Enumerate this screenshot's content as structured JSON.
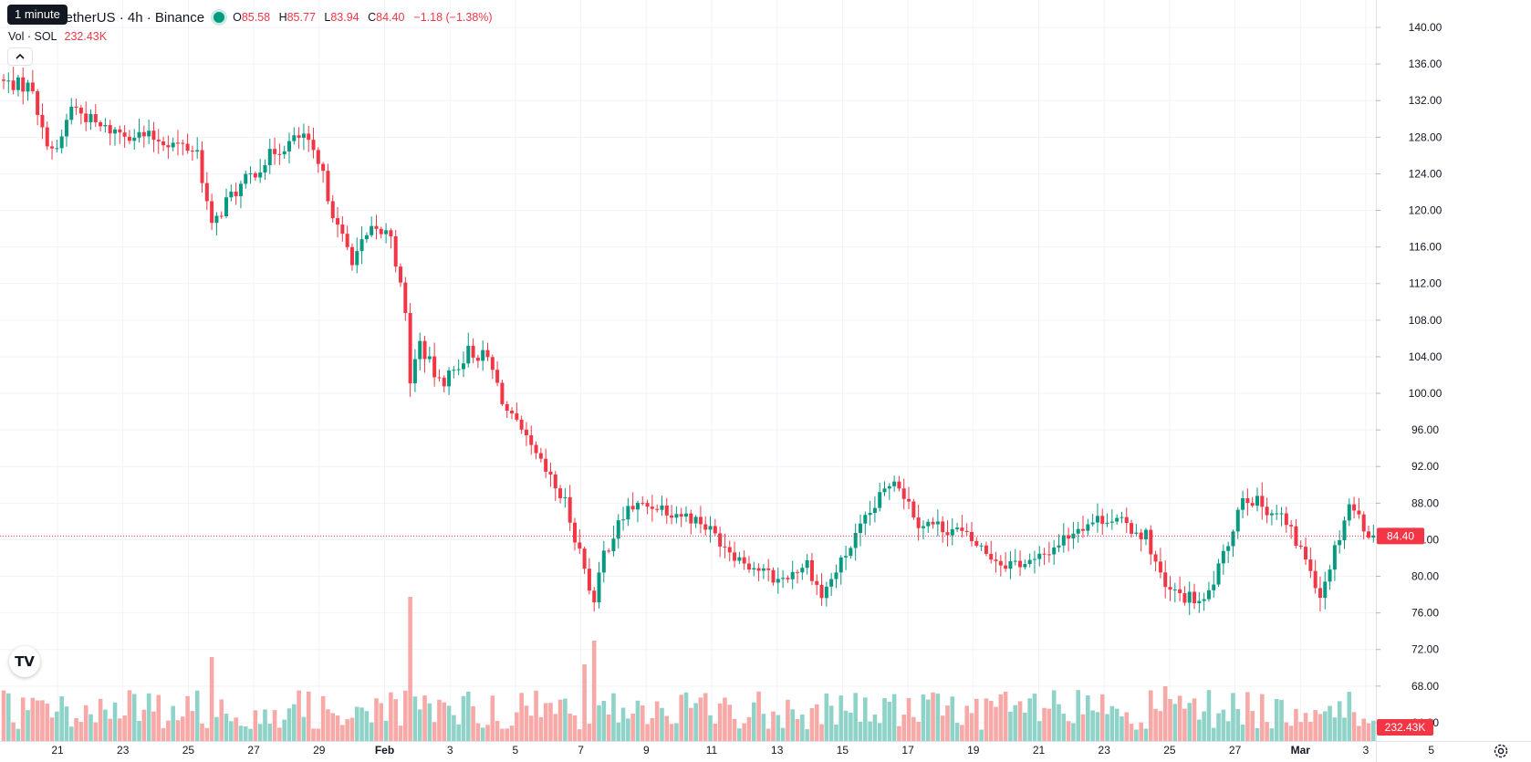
{
  "legend": {
    "tooltip": "1 minute",
    "symbol": "TetherUS · 4h · Binance",
    "o_label": "O",
    "o_value": "85.58",
    "h_label": "H",
    "h_value": "85.77",
    "l_label": "L",
    "l_value": "83.94",
    "c_label": "C",
    "c_value": "84.40",
    "change": "−1.18 (−1.38%)",
    "vol_label": "Vol · SOL",
    "vol_value": "232.43K"
  },
  "colors": {
    "up": "#089981",
    "down": "#f23645",
    "up_vol": "#8fd3c8",
    "down_vol": "#f7a9a7",
    "grid": "#f0f3fa"
  },
  "chart_data": {
    "type": "candlestick",
    "symbol": "TetherUS · 4h · Binance",
    "price_axis": {
      "ylim": [
        62.0,
        141.4
      ],
      "ticks": [
        "140.00",
        "136.00",
        "132.00",
        "128.00",
        "124.00",
        "120.00",
        "116.00",
        "112.00",
        "108.00",
        "104.00",
        "100.00",
        "96.00",
        "92.00",
        "88.00",
        "84.00",
        "80.00",
        "76.00",
        "72.00",
        "68.00",
        "64.00"
      ]
    },
    "time_axis": {
      "labels": [
        "21",
        "23",
        "25",
        "27",
        "29",
        "Feb",
        "3",
        "5",
        "7",
        "9",
        "11",
        "13",
        "15",
        "17",
        "19",
        "21",
        "23",
        "25",
        "27",
        "Mar",
        "3",
        "5"
      ]
    },
    "current_price": "84.40",
    "current_volume": "232.43K",
    "series": [
      {
        "name": "price",
        "anchors": [
          {
            "t": 0,
            "p": 134.0
          },
          {
            "t": 6,
            "p": 133.5
          },
          {
            "t": 8,
            "p": 128.5
          },
          {
            "t": 11,
            "p": 126.2
          },
          {
            "t": 14,
            "p": 131.5
          },
          {
            "t": 20,
            "p": 129.0
          },
          {
            "t": 32,
            "p": 127.8
          },
          {
            "t": 40,
            "p": 126.5
          },
          {
            "t": 43,
            "p": 118.0
          },
          {
            "t": 46,
            "p": 121.0
          },
          {
            "t": 56,
            "p": 126.5
          },
          {
            "t": 62,
            "p": 128.2
          },
          {
            "t": 66,
            "p": 123.6
          },
          {
            "t": 69,
            "p": 118.0
          },
          {
            "t": 72,
            "p": 114.8
          },
          {
            "t": 76,
            "p": 117.6
          },
          {
            "t": 80,
            "p": 117.5
          },
          {
            "t": 83,
            "p": 108.5
          },
          {
            "t": 84,
            "p": 101.5
          },
          {
            "t": 86,
            "p": 105.5
          },
          {
            "t": 90,
            "p": 101.0
          },
          {
            "t": 93,
            "p": 102.5
          },
          {
            "t": 96,
            "p": 104.6
          },
          {
            "t": 100,
            "p": 103.8
          },
          {
            "t": 104,
            "p": 98.0
          },
          {
            "t": 110,
            "p": 93.0
          },
          {
            "t": 116,
            "p": 88.0
          },
          {
            "t": 120,
            "p": 81.0
          },
          {
            "t": 122,
            "p": 77.0
          },
          {
            "t": 124,
            "p": 82.5
          },
          {
            "t": 129,
            "p": 87.5
          },
          {
            "t": 135,
            "p": 87.8
          },
          {
            "t": 144,
            "p": 86.0
          },
          {
            "t": 152,
            "p": 82.0
          },
          {
            "t": 160,
            "p": 79.5
          },
          {
            "t": 166,
            "p": 81.5
          },
          {
            "t": 169,
            "p": 77.8
          },
          {
            "t": 173,
            "p": 81.5
          },
          {
            "t": 178,
            "p": 86.0
          },
          {
            "t": 184,
            "p": 91.0
          },
          {
            "t": 189,
            "p": 86.0
          },
          {
            "t": 197,
            "p": 85.0
          },
          {
            "t": 206,
            "p": 81.5
          },
          {
            "t": 213,
            "p": 81.5
          },
          {
            "t": 222,
            "p": 85.5
          },
          {
            "t": 228,
            "p": 86.5
          },
          {
            "t": 236,
            "p": 84.5
          },
          {
            "t": 240,
            "p": 78.5
          },
          {
            "t": 248,
            "p": 77.0
          },
          {
            "t": 252,
            "p": 82.0
          },
          {
            "t": 256,
            "p": 89.0
          },
          {
            "t": 264,
            "p": 86.5
          },
          {
            "t": 270,
            "p": 81.0
          },
          {
            "t": 272,
            "p": 78.0
          },
          {
            "t": 278,
            "p": 88.0
          },
          {
            "t": 283,
            "p": 84.0
          },
          {
            "t": 287,
            "p": 85.0
          },
          {
            "t": 289,
            "p": 88.5
          },
          {
            "t": 295,
            "p": 84.4
          }
        ]
      }
    ],
    "volume_peaks": [
      {
        "t": 43,
        "v": 0.46
      },
      {
        "t": 84,
        "v": 0.79
      },
      {
        "t": 120,
        "v": 0.42
      },
      {
        "t": 122,
        "v": 0.55
      },
      {
        "t": 240,
        "v": 0.3
      },
      {
        "t": 289,
        "v": 0.3
      }
    ]
  }
}
